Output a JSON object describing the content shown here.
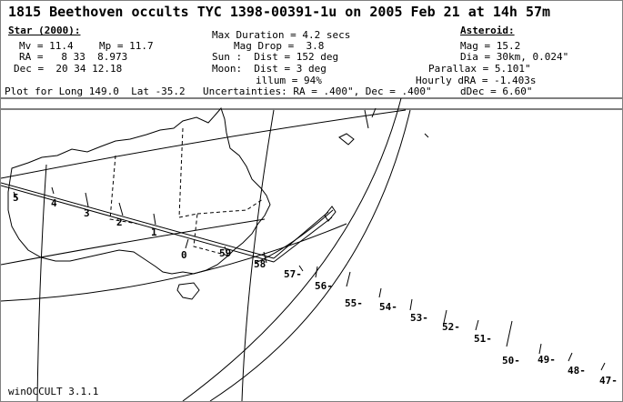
{
  "title": "1815 Beethoven occults TYC 1398-00391-1u on 2005 Feb 21 at 14h 57m",
  "star": {
    "heading": "Star (2000):",
    "mv": "Mv = 11.4",
    "mp": "Mp = 11.7",
    "ra": "RA =   8 33  8.973",
    "dec": "Dec =  20 34 12.18"
  },
  "event": {
    "max_duration": "Max Duration = 4.2 secs",
    "mag_drop": "Mag Drop =  3.8",
    "sun": "Sun :  Dist = 152 deg",
    "moon": "Moon:  Dist = 3 deg",
    "illum": "illum = 94%"
  },
  "asteroid": {
    "heading": "Asteroid:",
    "mag": "Mag = 15.2",
    "dia": "Dia = 30km, 0.024\"",
    "parallax": "Parallax = 5.101\"",
    "hourly_dra": "Hourly dRA = -1.403s",
    "ddec": "dDec = 6.60\""
  },
  "plot_for": "Plot for Long 149.0  Lat -35.2",
  "uncertainties": "Uncertainties: RA = .400\", Dec = .400\"",
  "software": "winOCCULT 3.1.1",
  "path_labels": [
    "5",
    "4",
    "3",
    "2",
    "1",
    "0",
    "59",
    "58",
    "57-",
    "56-",
    "55-",
    "54-",
    "53-",
    "52-",
    "51-",
    "50-",
    "49-",
    "48-",
    "47-"
  ],
  "colors": {
    "background": "#ffffff",
    "ink": "#000000",
    "frame": "#808080"
  }
}
